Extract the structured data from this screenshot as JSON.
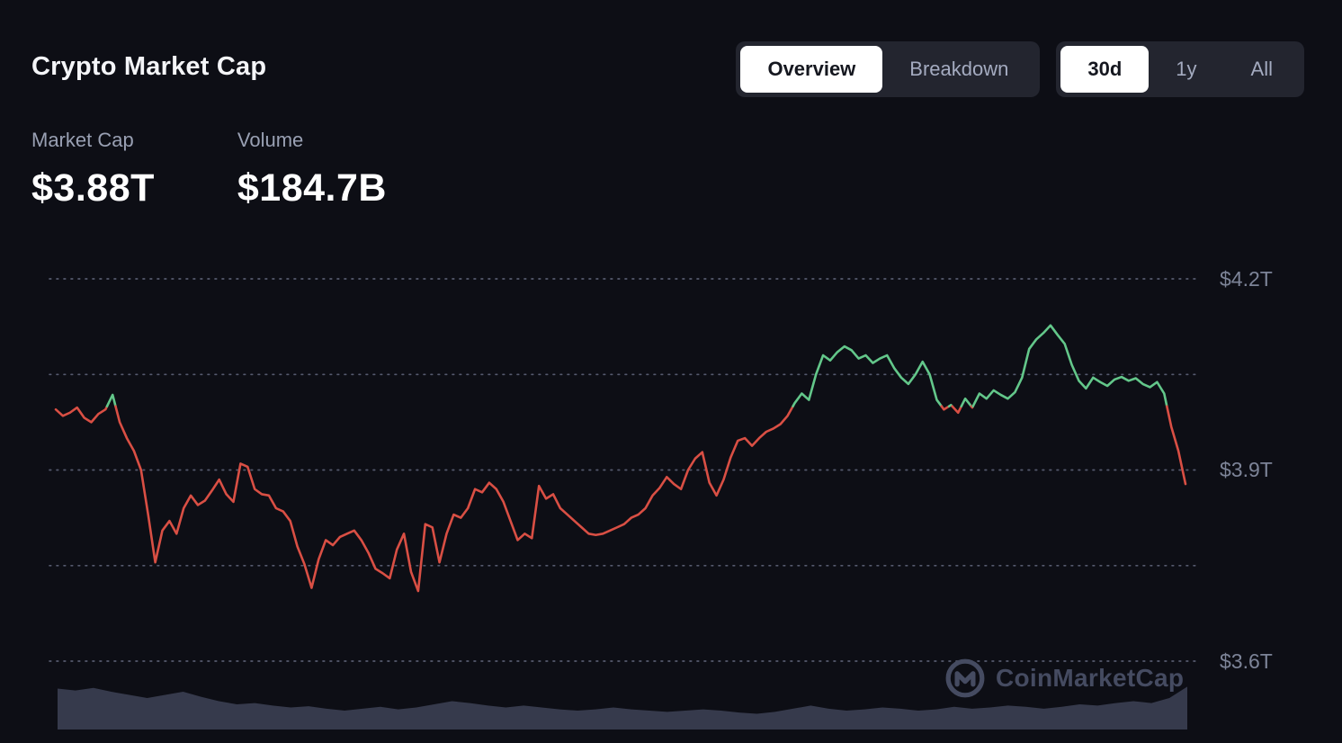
{
  "header": {
    "title": "Crypto Market Cap"
  },
  "view_toggle": {
    "options": [
      {
        "label": "Overview",
        "active": true
      },
      {
        "label": "Breakdown",
        "active": false
      }
    ]
  },
  "range_toggle": {
    "options": [
      {
        "label": "30d",
        "active": true
      },
      {
        "label": "1y",
        "active": false
      },
      {
        "label": "All",
        "active": false
      }
    ]
  },
  "stats": [
    {
      "label": "Market Cap",
      "value": "$3.88T"
    },
    {
      "label": "Volume",
      "value": "$184.7B"
    }
  ],
  "watermark": {
    "text": "CoinMarketCap"
  },
  "colors": {
    "background": "#0d0e15",
    "up": "#63c78a",
    "down": "#d94f44",
    "grid": "#555a6e",
    "axis_label": "#7d8498",
    "volume": "#363a4c",
    "toggle_bg": "#23252f",
    "active_pill_bg": "#ffffff",
    "active_pill_text": "#15171f",
    "inactive_text": "#a4abc0",
    "watermark": "#454b61"
  },
  "chart_data": {
    "type": "line",
    "title": "Crypto Market Cap",
    "range": "30d",
    "unit": "USD trillions",
    "baseline": 4.0,
    "ylim": [
      3.55,
      4.25
    ],
    "grid": "dotted-horizontal",
    "legend": "none",
    "gridlines": [
      {
        "value": 4.2,
        "label": "$4.2T"
      },
      {
        "value": 4.05,
        "label": ""
      },
      {
        "value": 3.9,
        "label": "$3.9T"
      },
      {
        "value": 3.75,
        "label": ""
      },
      {
        "value": 3.6,
        "label": "$3.6T"
      }
    ],
    "series": [
      {
        "name": "Market Cap",
        "color_rule": "green above baseline, red below",
        "values": [
          3.995,
          3.985,
          3.99,
          3.998,
          3.982,
          3.975,
          3.988,
          3.995,
          4.018,
          3.975,
          3.95,
          3.93,
          3.9,
          3.83,
          3.755,
          3.805,
          3.82,
          3.8,
          3.84,
          3.86,
          3.845,
          3.852,
          3.868,
          3.885,
          3.862,
          3.85,
          3.91,
          3.905,
          3.87,
          3.862,
          3.86,
          3.84,
          3.835,
          3.82,
          3.78,
          3.752,
          3.715,
          3.76,
          3.79,
          3.782,
          3.795,
          3.8,
          3.805,
          3.79,
          3.77,
          3.745,
          3.738,
          3.73,
          3.775,
          3.8,
          3.74,
          3.71,
          3.815,
          3.81,
          3.755,
          3.8,
          3.83,
          3.825,
          3.84,
          3.87,
          3.865,
          3.88,
          3.87,
          3.85,
          3.82,
          3.79,
          3.8,
          3.793,
          3.875,
          3.855,
          3.862,
          3.84,
          3.83,
          3.82,
          3.81,
          3.8,
          3.798,
          3.8,
          3.805,
          3.81,
          3.815,
          3.825,
          3.83,
          3.84,
          3.86,
          3.872,
          3.889,
          3.878,
          3.87,
          3.9,
          3.918,
          3.928,
          3.88,
          3.86,
          3.885,
          3.92,
          3.946,
          3.95,
          3.938,
          3.95,
          3.96,
          3.965,
          3.972,
          3.985,
          4.005,
          4.02,
          4.01,
          4.05,
          4.08,
          4.072,
          4.085,
          4.094,
          4.088,
          4.075,
          4.08,
          4.068,
          4.075,
          4.08,
          4.06,
          4.045,
          4.035,
          4.05,
          4.07,
          4.05,
          4.01,
          3.995,
          4.002,
          3.99,
          4.012,
          3.998,
          4.02,
          4.012,
          4.025,
          4.018,
          4.012,
          4.022,
          4.045,
          4.09,
          4.105,
          4.115,
          4.127,
          4.112,
          4.098,
          4.065,
          4.04,
          4.028,
          4.045,
          4.038,
          4.032,
          4.042,
          4.046,
          4.04,
          4.044,
          4.035,
          4.03,
          4.038,
          4.02,
          3.968,
          3.93,
          3.878
        ]
      }
    ],
    "volume": {
      "name": "Volume",
      "values_normalized": [
        0.65,
        0.62,
        0.66,
        0.6,
        0.55,
        0.5,
        0.55,
        0.6,
        0.52,
        0.45,
        0.4,
        0.42,
        0.38,
        0.35,
        0.37,
        0.33,
        0.3,
        0.33,
        0.36,
        0.32,
        0.35,
        0.4,
        0.45,
        0.42,
        0.38,
        0.35,
        0.38,
        0.35,
        0.32,
        0.3,
        0.32,
        0.35,
        0.32,
        0.3,
        0.28,
        0.3,
        0.32,
        0.3,
        0.27,
        0.25,
        0.28,
        0.33,
        0.38,
        0.33,
        0.3,
        0.32,
        0.35,
        0.33,
        0.3,
        0.32,
        0.36,
        0.33,
        0.35,
        0.38,
        0.36,
        0.33,
        0.36,
        0.4,
        0.38,
        0.42,
        0.45,
        0.42,
        0.5,
        0.68
      ]
    }
  }
}
